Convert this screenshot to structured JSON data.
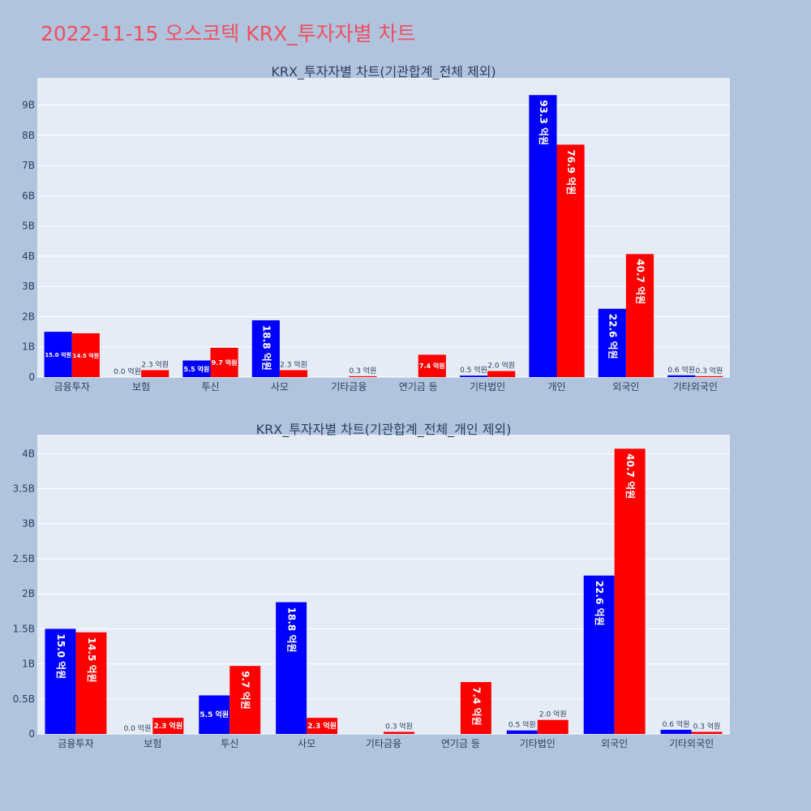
{
  "page_title": "2022-11-15 오스코텍 KRX_투자자별 차트",
  "colors": {
    "background": "#b0c4de",
    "plot_bg": "#e5ecf6",
    "title": "#ef4f5f",
    "series1": "#0000ff",
    "series2": "#ff0000"
  },
  "chart_data": [
    {
      "type": "bar",
      "title": "KRX_투자자별 차트(기관합계_전체 제외)",
      "categories": [
        "금융투자",
        "보험",
        "투신",
        "사모",
        "기타금융",
        "연기금 등",
        "기타법인",
        "개인",
        "외국인",
        "기타외국인"
      ],
      "series": [
        {
          "values": [
            1.5,
            0.0,
            0.55,
            1.88,
            0.0,
            0.0,
            0.05,
            9.33,
            2.26,
            0.06
          ],
          "labels": [
            "15.0 억원",
            "0.0 억원",
            "5.5 억원",
            "18.8 억원",
            "",
            "",
            "0.5 억원",
            "93.3 억원",
            "22.6 억원",
            "0.6 억원"
          ]
        },
        {
          "values": [
            1.45,
            0.23,
            0.97,
            0.23,
            0.03,
            0.74,
            0.2,
            7.69,
            4.07,
            0.03
          ],
          "labels": [
            "14.5 억원",
            "2.3 억원",
            "9.7 억원",
            "2.3 억원",
            "0.3 억원",
            "7.4 억원",
            "2.0 억원",
            "76.9 억원",
            "40.7 억원",
            "0.3 억원"
          ]
        }
      ],
      "y_unit": "B",
      "y_ticks": [
        0,
        1,
        2,
        3,
        4,
        5,
        6,
        7,
        8,
        9
      ],
      "y_tick_labels": [
        "0",
        "1B",
        "2B",
        "3B",
        "4B",
        "5B",
        "6B",
        "7B",
        "8B",
        "9B"
      ],
      "ylim": [
        0,
        9.9
      ],
      "grid": true,
      "legend": "none"
    },
    {
      "type": "bar",
      "title": "KRX_투자자별 차트(기관합계_전체_개인 제외)",
      "categories": [
        "금융투자",
        "보험",
        "투신",
        "사모",
        "기타금융",
        "연기금 등",
        "기타법인",
        "외국인",
        "기타외국인"
      ],
      "series": [
        {
          "values": [
            1.5,
            0.0,
            0.55,
            1.88,
            0.0,
            0.0,
            0.05,
            2.26,
            0.06
          ],
          "labels": [
            "15.0 억원",
            "0.0 억원",
            "5.5 억원",
            "18.8 억원",
            "",
            "",
            "0.5 억원",
            "22.6 억원",
            "0.6 억원"
          ]
        },
        {
          "values": [
            1.45,
            0.23,
            0.97,
            0.23,
            0.03,
            0.74,
            0.2,
            4.07,
            0.03
          ],
          "labels": [
            "14.5 억원",
            "2.3 억원",
            "9.7 억원",
            "2.3 억원",
            "0.3 억원",
            "7.4 억원",
            "2.0 억원",
            "40.7 억원",
            "0.3 억원"
          ]
        }
      ],
      "y_unit": "B",
      "y_ticks": [
        0,
        0.5,
        1,
        1.5,
        2,
        2.5,
        3,
        3.5,
        4
      ],
      "y_tick_labels": [
        "0",
        "0.5B",
        "1B",
        "1.5B",
        "2B",
        "2.5B",
        "3B",
        "3.5B",
        "4B"
      ],
      "ylim": [
        0,
        4.27
      ],
      "grid": true,
      "legend": "none"
    }
  ]
}
